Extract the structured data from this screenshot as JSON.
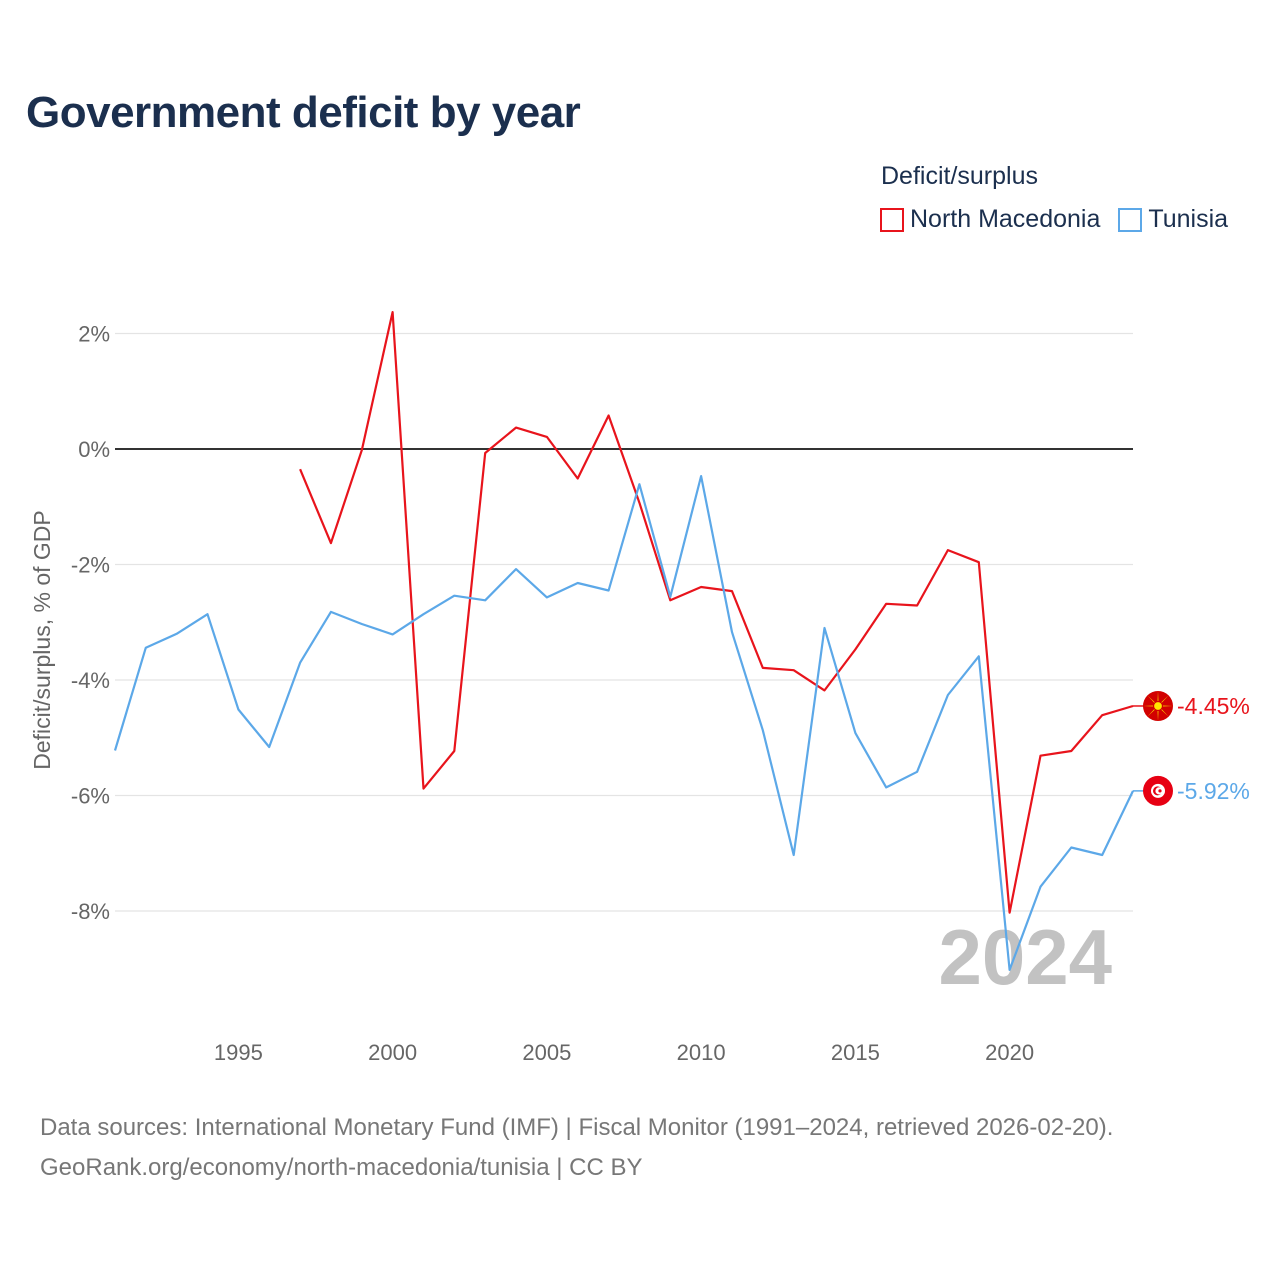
{
  "title": "Government deficit by year",
  "legend": {
    "title": "Deficit/surplus",
    "items": [
      {
        "name": "North Macedonia",
        "color": "#e8141c"
      },
      {
        "name": "Tunisia",
        "color": "#5ca8e8"
      }
    ]
  },
  "footer": {
    "line1": "Data sources: International Monetary Fund (IMF) | Fiscal Monitor (1991–2024, retrieved 2026-02-20).",
    "line2": "GeoRank.org/economy/north-macedonia/tunisia | CC BY"
  },
  "chart_data": {
    "type": "line",
    "title": "Government deficit by year",
    "ylabel": "Deficit/surplus, % of GDP",
    "xlabel": "",
    "xlim": [
      1991,
      2024
    ],
    "ylim": [
      -10,
      2.5
    ],
    "yticks": [
      2,
      0,
      -2,
      -4,
      -6,
      -8
    ],
    "ytick_labels": [
      "2%",
      "0%",
      "-2%",
      "-4%",
      "-6%",
      "-8%"
    ],
    "xticks": [
      1995,
      2000,
      2005,
      2010,
      2015,
      2020
    ],
    "xtick_labels": [
      "1995",
      "2000",
      "2005",
      "2010",
      "2015",
      "2020"
    ],
    "year_marker": "2024",
    "series": [
      {
        "name": "North Macedonia",
        "color": "#e8141c",
        "end_label": "-4.45%",
        "flag_icon": "north-macedonia-flag-icon",
        "x": [
          1997,
          1998,
          1999,
          2000,
          2001,
          2002,
          2003,
          2004,
          2005,
          2006,
          2007,
          2008,
          2009,
          2010,
          2011,
          2012,
          2013,
          2014,
          2015,
          2016,
          2017,
          2018,
          2019,
          2020,
          2021,
          2022,
          2023,
          2024
        ],
        "values": [
          -0.35,
          -1.63,
          -0.02,
          2.37,
          -5.88,
          -5.23,
          -0.07,
          0.37,
          0.21,
          -0.51,
          0.58,
          -0.93,
          -2.62,
          -2.39,
          -2.46,
          -3.79,
          -3.83,
          -4.18,
          -3.47,
          -2.68,
          -2.71,
          -1.75,
          -1.96,
          -8.03,
          -5.31,
          -5.23,
          -4.61,
          -4.45
        ]
      },
      {
        "name": "Tunisia",
        "color": "#5ca8e8",
        "end_label": "-5.92%",
        "flag_icon": "tunisia-flag-icon",
        "x": [
          1991,
          1992,
          1993,
          1994,
          1995,
          1996,
          1997,
          1998,
          1999,
          2000,
          2001,
          2002,
          2003,
          2004,
          2005,
          2006,
          2007,
          2008,
          2009,
          2010,
          2011,
          2012,
          2013,
          2014,
          2015,
          2016,
          2017,
          2018,
          2019,
          2020,
          2021,
          2022,
          2023,
          2024
        ],
        "values": [
          -5.22,
          -3.44,
          -3.2,
          -2.86,
          -4.51,
          -5.16,
          -3.7,
          -2.82,
          -3.03,
          -3.21,
          -2.86,
          -2.54,
          -2.62,
          -2.08,
          -2.57,
          -2.32,
          -2.45,
          -0.61,
          -2.56,
          -0.47,
          -3.17,
          -4.87,
          -7.03,
          -3.1,
          -4.92,
          -5.86,
          -5.59,
          -4.26,
          -3.59,
          -9.02,
          -7.58,
          -6.9,
          -7.03,
          -5.92
        ]
      }
    ]
  }
}
